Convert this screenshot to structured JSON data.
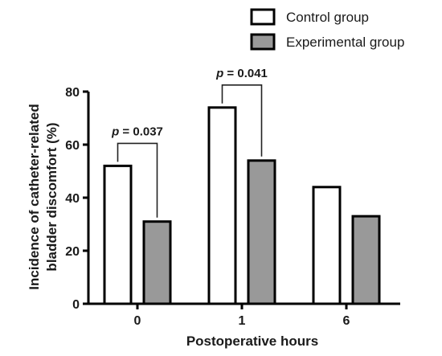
{
  "chart_data": {
    "type": "bar",
    "categories": [
      "0",
      "1",
      "6"
    ],
    "series": [
      {
        "name": "Control group",
        "values": [
          52,
          74,
          44
        ],
        "color": "#ffffff"
      },
      {
        "name": "Experimental group",
        "values": [
          31,
          54,
          33
        ],
        "color": "#999999"
      }
    ],
    "xlabel": "Postoperative hours",
    "ylabel_lines": [
      "Incidence of catheter-related",
      "bladder discomfort (%)"
    ],
    "ylim": [
      0,
      80
    ],
    "yticks": [
      "0",
      "20",
      "40",
      "60",
      "80"
    ],
    "legend_position": "top-right",
    "grid": false,
    "annotations": [
      {
        "category": "0",
        "p_symbol": "p",
        "text": " = 0.037"
      },
      {
        "category": "1",
        "p_symbol": "p",
        "text": " = 0.041"
      }
    ]
  }
}
